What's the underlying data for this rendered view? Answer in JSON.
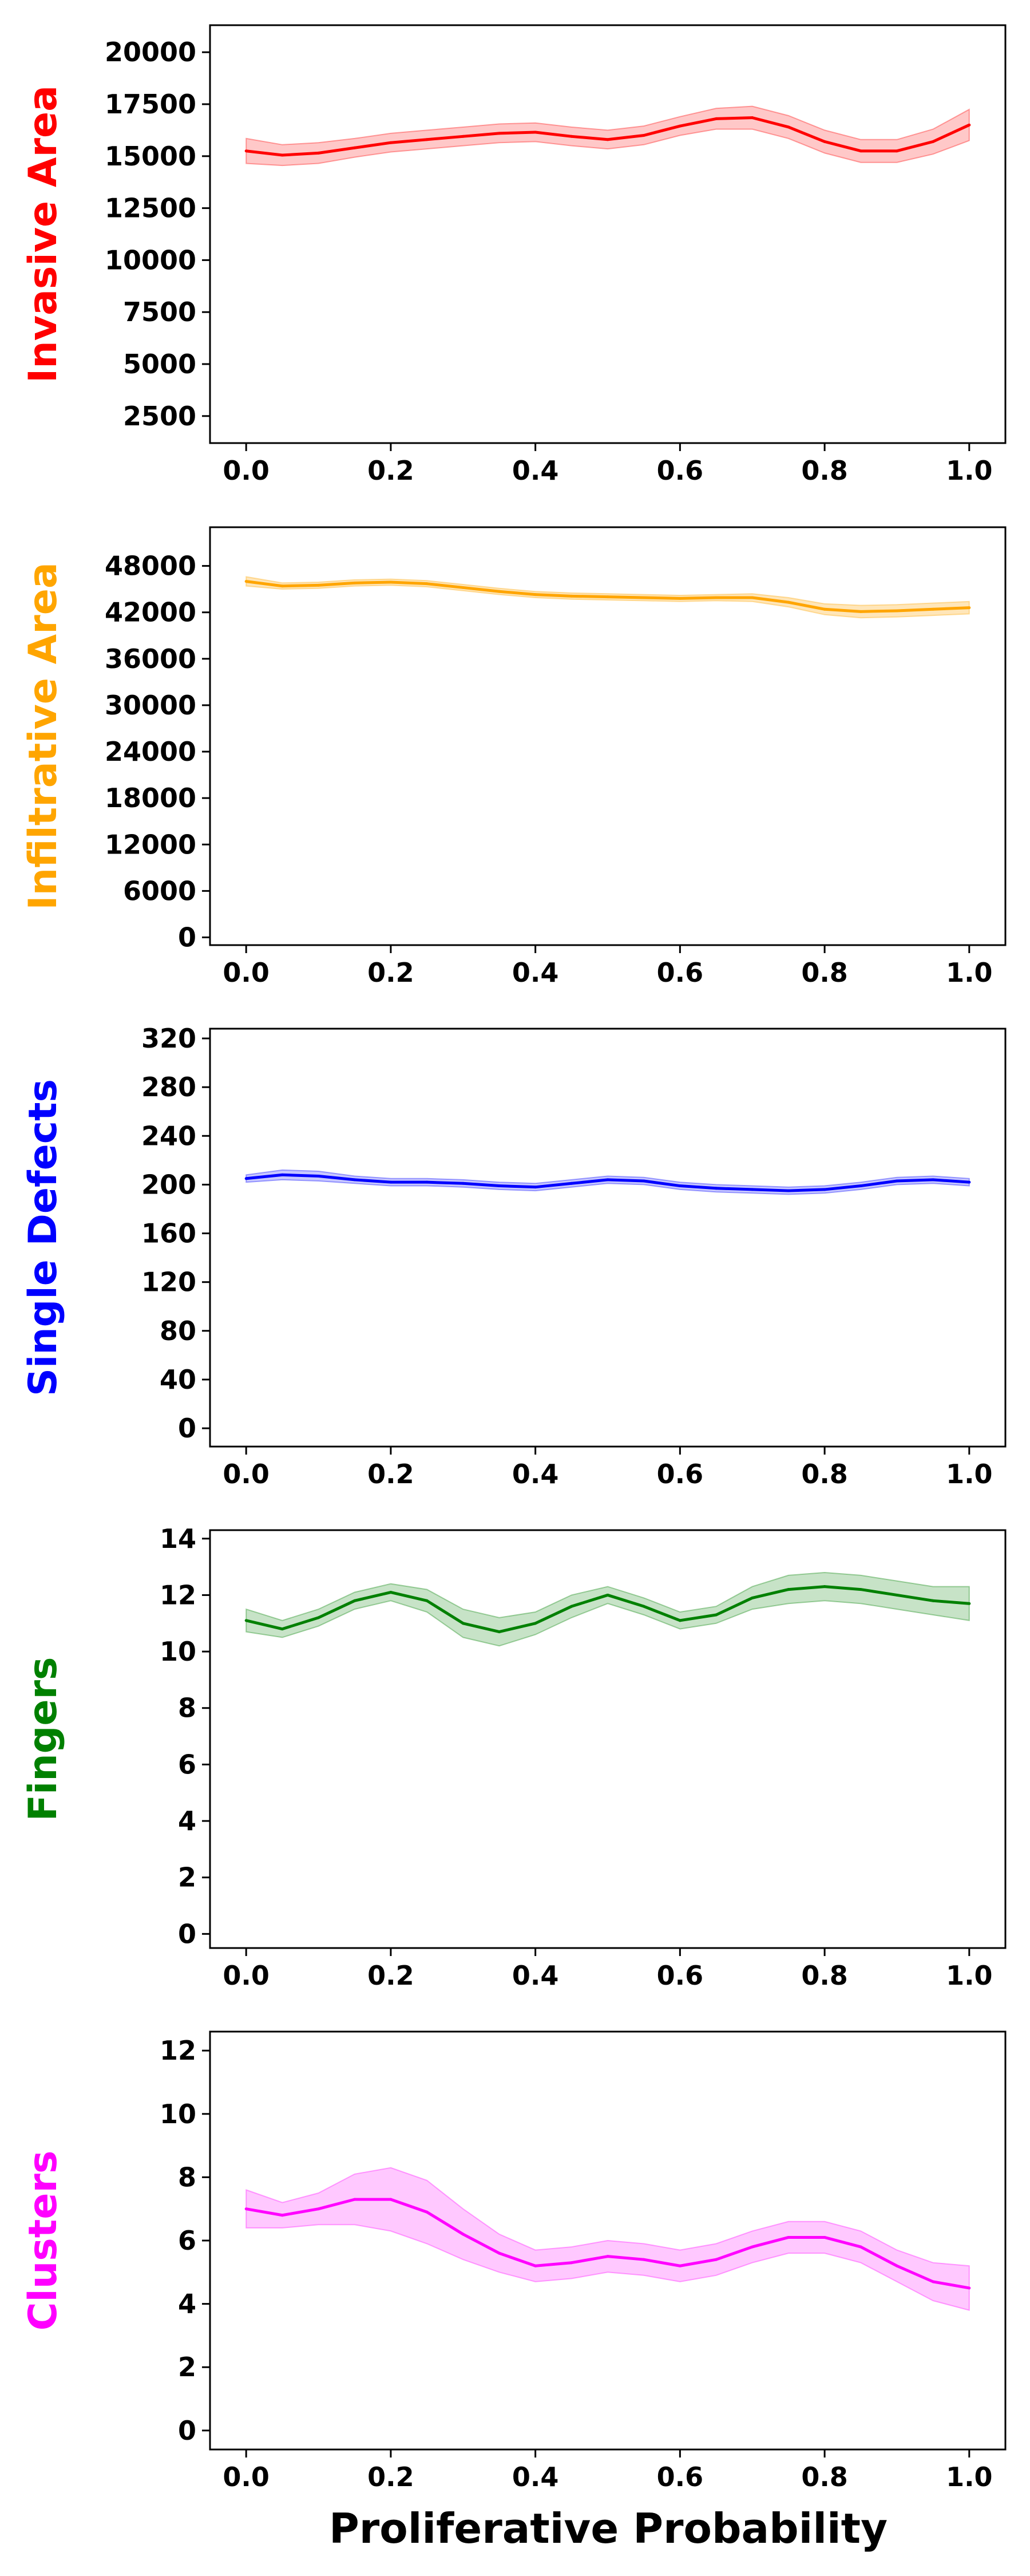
{
  "xlabel": "Proliferative Probability",
  "chart_data": [
    {
      "type": "line",
      "ylabel": "Invasive Area",
      "color": "#ff0000",
      "band_color": "#ff9a9a",
      "xlim": [
        -0.05,
        1.05
      ],
      "ylim": [
        1200,
        21300
      ],
      "x_ticks": [
        "0.0",
        "0.2",
        "0.4",
        "0.6",
        "0.8",
        "1.0"
      ],
      "y_ticks": [
        "2500",
        "5000",
        "7500",
        "10000",
        "12500",
        "15000",
        "17500",
        "20000"
      ],
      "series": [
        {
          "x": [
            0.0,
            0.05,
            0.1,
            0.15,
            0.2,
            0.25,
            0.3,
            0.35,
            0.4,
            0.45,
            0.5,
            0.55,
            0.6,
            0.65,
            0.7,
            0.75,
            0.8,
            0.85,
            0.9,
            0.95,
            1.0
          ],
          "y": [
            15250,
            15050,
            15150,
            15400,
            15650,
            15800,
            15950,
            16100,
            16150,
            15950,
            15800,
            16000,
            16450,
            16800,
            16850,
            16400,
            15700,
            15250,
            15250,
            15700,
            16500
          ],
          "lower": [
            14650,
            14550,
            14650,
            14950,
            15200,
            15350,
            15500,
            15650,
            15700,
            15500,
            15350,
            15550,
            16000,
            16300,
            16300,
            15850,
            15150,
            14700,
            14700,
            15100,
            15750
          ],
          "upper": [
            15850,
            15550,
            15650,
            15850,
            16100,
            16250,
            16400,
            16550,
            16600,
            16400,
            16250,
            16450,
            16900,
            17300,
            17400,
            16950,
            16250,
            15800,
            15800,
            16300,
            17250
          ]
        }
      ]
    },
    {
      "type": "line",
      "ylabel": "Infiltrative Area",
      "color": "#ffa500",
      "band_color": "#ffd280",
      "xlim": [
        -0.05,
        1.05
      ],
      "ylim": [
        -1000,
        53000
      ],
      "x_ticks": [
        "0.0",
        "0.2",
        "0.4",
        "0.6",
        "0.8",
        "1.0"
      ],
      "y_ticks": [
        "0",
        "6000",
        "12000",
        "18000",
        "24000",
        "30000",
        "36000",
        "42000",
        "48000"
      ],
      "series": [
        {
          "x": [
            0.0,
            0.05,
            0.1,
            0.15,
            0.2,
            0.25,
            0.3,
            0.35,
            0.4,
            0.45,
            0.5,
            0.55,
            0.6,
            0.65,
            0.7,
            0.75,
            0.8,
            0.85,
            0.9,
            0.95,
            1.0
          ],
          "y": [
            46000,
            45400,
            45500,
            45800,
            45900,
            45700,
            45200,
            44700,
            44300,
            44100,
            44000,
            43900,
            43800,
            43900,
            43900,
            43300,
            42400,
            42100,
            42200,
            42400,
            42600
          ],
          "lower": [
            45400,
            45000,
            45100,
            45400,
            45500,
            45300,
            44800,
            44300,
            43900,
            43700,
            43600,
            43500,
            43400,
            43500,
            43400,
            42700,
            41700,
            41300,
            41400,
            41600,
            41800
          ],
          "upper": [
            46600,
            45800,
            45900,
            46200,
            46300,
            46100,
            45600,
            45100,
            44700,
            44500,
            44400,
            44300,
            44200,
            44300,
            44400,
            43900,
            43100,
            42900,
            43000,
            43200,
            43400
          ]
        }
      ]
    },
    {
      "type": "line",
      "ylabel": "Single Defects",
      "color": "#0000ff",
      "band_color": "#9a9aff",
      "xlim": [
        -0.05,
        1.05
      ],
      "ylim": [
        -15,
        328
      ],
      "x_ticks": [
        "0.0",
        "0.2",
        "0.4",
        "0.6",
        "0.8",
        "1.0"
      ],
      "y_ticks": [
        "0",
        "40",
        "80",
        "120",
        "160",
        "200",
        "240",
        "280",
        "320"
      ],
      "series": [
        {
          "x": [
            0.0,
            0.05,
            0.1,
            0.15,
            0.2,
            0.25,
            0.3,
            0.35,
            0.4,
            0.45,
            0.5,
            0.55,
            0.6,
            0.65,
            0.7,
            0.75,
            0.8,
            0.85,
            0.9,
            0.95,
            1.0
          ],
          "y": [
            205,
            208,
            207,
            204,
            202,
            202,
            201,
            199,
            198,
            201,
            204,
            203,
            199,
            197,
            196,
            195,
            196,
            199,
            203,
            204,
            202
          ],
          "lower": [
            202,
            204,
            203,
            201,
            199,
            199,
            198,
            196,
            195,
            198,
            201,
            200,
            196,
            194,
            193,
            192,
            193,
            196,
            200,
            201,
            199
          ],
          "upper": [
            208,
            212,
            211,
            207,
            205,
            205,
            204,
            202,
            201,
            204,
            207,
            206,
            202,
            200,
            199,
            198,
            199,
            202,
            206,
            207,
            205
          ]
        }
      ]
    },
    {
      "type": "line",
      "ylabel": "Fingers",
      "color": "#008000",
      "band_color": "#99cc99",
      "xlim": [
        -0.05,
        1.05
      ],
      "ylim": [
        -0.5,
        14.3
      ],
      "x_ticks": [
        "0.0",
        "0.2",
        "0.4",
        "0.6",
        "0.8",
        "1.0"
      ],
      "y_ticks": [
        "0",
        "2",
        "4",
        "6",
        "8",
        "10",
        "12",
        "14"
      ],
      "series": [
        {
          "x": [
            0.0,
            0.05,
            0.1,
            0.15,
            0.2,
            0.25,
            0.3,
            0.35,
            0.4,
            0.45,
            0.5,
            0.55,
            0.6,
            0.65,
            0.7,
            0.75,
            0.8,
            0.85,
            0.9,
            0.95,
            1.0
          ],
          "y": [
            11.1,
            10.8,
            11.2,
            11.8,
            12.1,
            11.8,
            11.0,
            10.7,
            11.0,
            11.6,
            12.0,
            11.6,
            11.1,
            11.3,
            11.9,
            12.2,
            12.3,
            12.2,
            12.0,
            11.8,
            11.7
          ],
          "lower": [
            10.7,
            10.5,
            10.9,
            11.5,
            11.8,
            11.4,
            10.5,
            10.2,
            10.6,
            11.2,
            11.7,
            11.3,
            10.8,
            11.0,
            11.5,
            11.7,
            11.8,
            11.7,
            11.5,
            11.3,
            11.1
          ],
          "upper": [
            11.5,
            11.1,
            11.5,
            12.1,
            12.4,
            12.2,
            11.5,
            11.2,
            11.4,
            12.0,
            12.3,
            11.9,
            11.4,
            11.6,
            12.3,
            12.7,
            12.8,
            12.7,
            12.5,
            12.3,
            12.3
          ]
        }
      ]
    },
    {
      "type": "line",
      "ylabel": "Clusters",
      "color": "#ff00ff",
      "band_color": "#ff9aff",
      "xlim": [
        -0.05,
        1.05
      ],
      "ylim": [
        -0.6,
        12.6
      ],
      "x_ticks": [
        "0.0",
        "0.2",
        "0.4",
        "0.6",
        "0.8",
        "1.0"
      ],
      "y_ticks": [
        "0",
        "2",
        "4",
        "6",
        "8",
        "10",
        "12"
      ],
      "series": [
        {
          "x": [
            0.0,
            0.05,
            0.1,
            0.15,
            0.2,
            0.25,
            0.3,
            0.35,
            0.4,
            0.45,
            0.5,
            0.55,
            0.6,
            0.65,
            0.7,
            0.75,
            0.8,
            0.85,
            0.9,
            0.95,
            1.0
          ],
          "y": [
            7.0,
            6.8,
            7.0,
            7.3,
            7.3,
            6.9,
            6.2,
            5.6,
            5.2,
            5.3,
            5.5,
            5.4,
            5.2,
            5.4,
            5.8,
            6.1,
            6.1,
            5.8,
            5.2,
            4.7,
            4.5
          ],
          "lower": [
            6.4,
            6.4,
            6.5,
            6.5,
            6.3,
            5.9,
            5.4,
            5.0,
            4.7,
            4.8,
            5.0,
            4.9,
            4.7,
            4.9,
            5.3,
            5.6,
            5.6,
            5.3,
            4.7,
            4.1,
            3.8
          ],
          "upper": [
            7.6,
            7.2,
            7.5,
            8.1,
            8.3,
            7.9,
            7.0,
            6.2,
            5.7,
            5.8,
            6.0,
            5.9,
            5.7,
            5.9,
            6.3,
            6.6,
            6.6,
            6.3,
            5.7,
            5.3,
            5.2
          ]
        }
      ]
    }
  ]
}
